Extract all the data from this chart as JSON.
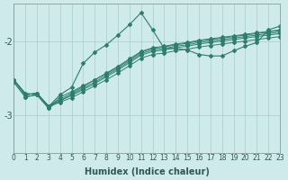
{
  "xlabel": "Humidex (Indice chaleur)",
  "xlim": [
    0,
    23
  ],
  "ylim": [
    -3.5,
    -1.5
  ],
  "yticks": [
    -3,
    -2
  ],
  "xticks": [
    0,
    1,
    2,
    3,
    4,
    5,
    6,
    7,
    8,
    9,
    10,
    11,
    12,
    13,
    14,
    15,
    16,
    17,
    18,
    19,
    20,
    21,
    22,
    23
  ],
  "bg_color": "#ceeaea",
  "line_color": "#2e7d6e",
  "grid_color": "#a8cccc",
  "jagged_line": {
    "x": [
      0,
      1,
      2,
      3,
      4,
      5,
      6,
      7,
      8,
      9,
      10,
      11,
      12,
      13,
      14,
      15,
      16,
      17,
      18,
      19,
      20,
      21,
      22,
      23
    ],
    "y": [
      -2.52,
      -2.7,
      -2.72,
      -2.88,
      -2.72,
      -2.62,
      -2.3,
      -2.15,
      -2.05,
      -1.92,
      -1.78,
      -1.62,
      -1.85,
      -2.1,
      -2.1,
      -2.12,
      -2.18,
      -2.2,
      -2.2,
      -2.13,
      -2.07,
      -2.02,
      -1.85,
      -1.8
    ]
  },
  "linear_lines": [
    {
      "x": [
        0,
        1,
        2,
        3,
        4,
        5,
        6,
        7,
        8,
        9,
        10,
        11,
        12,
        13,
        14,
        15,
        16,
        17,
        18,
        19,
        20,
        21,
        22,
        23
      ],
      "y": [
        -2.55,
        -2.75,
        -2.72,
        -2.9,
        -2.75,
        -2.68,
        -2.6,
        -2.52,
        -2.44,
        -2.35,
        -2.25,
        -2.15,
        -2.1,
        -2.08,
        -2.05,
        -2.03,
        -2.0,
        -1.98,
        -1.96,
        -1.94,
        -1.92,
        -1.9,
        -1.88,
        -1.86
      ]
    },
    {
      "x": [
        0,
        1,
        2,
        3,
        4,
        5,
        6,
        7,
        8,
        9,
        10,
        11,
        12,
        13,
        14,
        15,
        16,
        17,
        18,
        19,
        20,
        21,
        22,
        23
      ],
      "y": [
        -2.55,
        -2.75,
        -2.72,
        -2.9,
        -2.8,
        -2.72,
        -2.63,
        -2.55,
        -2.46,
        -2.37,
        -2.27,
        -2.17,
        -2.12,
        -2.1,
        -2.07,
        -2.05,
        -2.02,
        -2.0,
        -1.98,
        -1.96,
        -1.94,
        -1.92,
        -1.9,
        -1.88
      ]
    },
    {
      "x": [
        0,
        1,
        2,
        3,
        4,
        5,
        6,
        7,
        8,
        9,
        10,
        11,
        12,
        13,
        14,
        15,
        16,
        17,
        18,
        19,
        20,
        21,
        22,
        23
      ],
      "y": [
        -2.52,
        -2.72,
        -2.7,
        -2.87,
        -2.78,
        -2.7,
        -2.61,
        -2.52,
        -2.43,
        -2.34,
        -2.24,
        -2.14,
        -2.09,
        -2.07,
        -2.04,
        -2.02,
        -1.99,
        -1.97,
        -1.95,
        -1.93,
        -1.91,
        -1.89,
        -1.87,
        -1.85
      ]
    },
    {
      "x": [
        0,
        1,
        2,
        3,
        4,
        5,
        6,
        7,
        8,
        9,
        10,
        11,
        12,
        13,
        14,
        15,
        16,
        17,
        18,
        19,
        20,
        21,
        22,
        23
      ],
      "y": [
        -2.52,
        -2.72,
        -2.7,
        -2.87,
        -2.8,
        -2.73,
        -2.65,
        -2.57,
        -2.48,
        -2.39,
        -2.29,
        -2.19,
        -2.14,
        -2.12,
        -2.09,
        -2.07,
        -2.04,
        -2.02,
        -2.0,
        -1.98,
        -1.96,
        -1.94,
        -1.92,
        -1.9
      ]
    },
    {
      "x": [
        0,
        1,
        2,
        3,
        4,
        5,
        6,
        7,
        8,
        9,
        10,
        11,
        12,
        13,
        14,
        15,
        16,
        17,
        18,
        19,
        20,
        21,
        22,
        23
      ],
      "y": [
        -2.52,
        -2.72,
        -2.7,
        -2.88,
        -2.82,
        -2.76,
        -2.68,
        -2.6,
        -2.52,
        -2.43,
        -2.33,
        -2.23,
        -2.18,
        -2.16,
        -2.13,
        -2.11,
        -2.08,
        -2.06,
        -2.04,
        -2.02,
        -2.0,
        -1.98,
        -1.96,
        -1.94
      ]
    }
  ]
}
